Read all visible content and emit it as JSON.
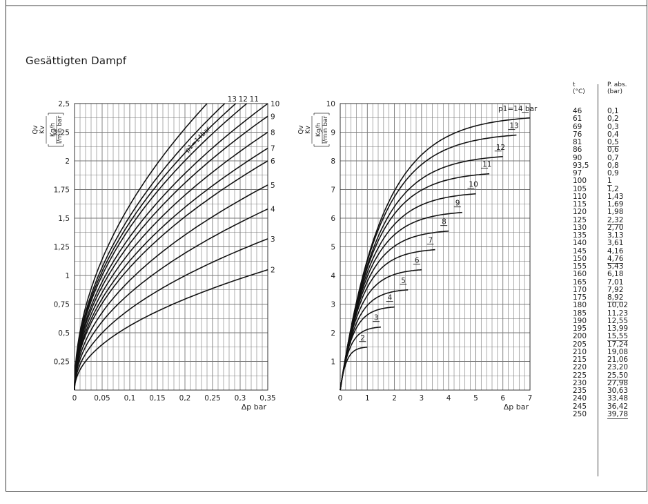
{
  "title": "Gesättigten Dampf",
  "chart_data": [
    {
      "type": "line",
      "chart_id": "left",
      "ylabel_quantity": "Qv",
      "ylabel_quantity2": "Kv",
      "ylabel_unit_top": "Kg/h",
      "ylabel_unit_bottom": "l/min bar",
      "xlabel": "Δp bar",
      "xlim": [
        0,
        0.35
      ],
      "ylim": [
        0,
        2.5
      ],
      "x_ticks": [
        "0",
        "0,05",
        "0,1",
        "0,15",
        "0,2",
        "0,25",
        "0,3",
        "0,35"
      ],
      "x_tick_values": [
        0,
        0.05,
        0.1,
        0.15,
        0.2,
        0.25,
        0.3,
        0.35
      ],
      "y_ticks": [
        "0,25",
        "0,5",
        "0,75",
        "1",
        "1,25",
        "1,5",
        "1,75",
        "2",
        "2,25",
        "2,5"
      ],
      "y_tick_values": [
        0.25,
        0.5,
        0.75,
        1,
        1.25,
        1.5,
        1.75,
        2,
        2.25,
        2.5
      ],
      "grid": true,
      "curve_annotation": "p1=14bar",
      "series": [
        {
          "label": "2",
          "y_at_xmax": 1.05
        },
        {
          "label": "3",
          "y_at_xmax": 1.32
        },
        {
          "label": "4",
          "y_at_xmax": 1.58
        },
        {
          "label": "5",
          "y_at_xmax": 1.79
        },
        {
          "label": "6",
          "y_at_xmax": 2.0
        },
        {
          "label": "7",
          "y_at_xmax": 2.11
        },
        {
          "label": "8",
          "y_at_xmax": 2.25
        },
        {
          "label": "9",
          "y_at_xmax": 2.39
        },
        {
          "label": "10",
          "y_at_xmax": 2.5
        },
        {
          "label": "11",
          "x_at_ymax": 0.312
        },
        {
          "label": "12",
          "x_at_ymax": 0.292
        },
        {
          "label": "13",
          "x_at_ymax": 0.272
        },
        {
          "label": "",
          "x_at_ymax": 0.24
        }
      ]
    },
    {
      "type": "line",
      "chart_id": "right",
      "ylabel_quantity": "Qv",
      "ylabel_quantity2": "Kv",
      "ylabel_unit_top": "Kg/h",
      "ylabel_unit_bottom": "l/min bar",
      "xlabel": "Δp bar",
      "xlim": [
        0,
        7
      ],
      "ylim": [
        0,
        10
      ],
      "x_ticks": [
        "0",
        "1",
        "2",
        "3",
        "4",
        "5",
        "6",
        "7"
      ],
      "x_tick_values": [
        0,
        1,
        2,
        3,
        4,
        5,
        6,
        7
      ],
      "y_ticks": [
        "1",
        "2",
        "3",
        "4",
        "5",
        "6",
        "7",
        "8",
        "9",
        "10"
      ],
      "y_tick_values": [
        1,
        2,
        3,
        4,
        5,
        6,
        7,
        8,
        9,
        10
      ],
      "grid": true,
      "series": [
        {
          "label": "2",
          "x_end": 1.0,
          "y_end": 1.5
        },
        {
          "label": "3",
          "x_end": 1.5,
          "y_end": 2.2
        },
        {
          "label": "4",
          "x_end": 2.0,
          "y_end": 2.9
        },
        {
          "label": "5",
          "x_end": 2.5,
          "y_end": 3.5
        },
        {
          "label": "6",
          "x_end": 3.0,
          "y_end": 4.2
        },
        {
          "label": "7",
          "x_end": 3.5,
          "y_end": 4.9
        },
        {
          "label": "8",
          "x_end": 4.0,
          "y_end": 5.55
        },
        {
          "label": "9",
          "x_end": 4.5,
          "y_end": 6.2
        },
        {
          "label": "10",
          "x_end": 5.0,
          "y_end": 6.85
        },
        {
          "label": "11",
          "x_end": 5.5,
          "y_end": 7.55
        },
        {
          "label": "12",
          "x_end": 6.0,
          "y_end": 8.15
        },
        {
          "label": "13",
          "x_end": 6.5,
          "y_end": 8.9
        },
        {
          "label": "p1=14 bar",
          "x_end": 7.0,
          "y_end": 9.5
        }
      ]
    }
  ],
  "table": {
    "header_t": "t",
    "header_t_unit": "(°C)",
    "header_p": "P. abs.",
    "header_p_unit": "(bar)",
    "rows": [
      [
        "46",
        "0,1"
      ],
      [
        "61",
        "0,2"
      ],
      [
        "69",
        "0,3"
      ],
      [
        "76",
        "0,4"
      ],
      [
        "81",
        "0,5"
      ],
      [
        "86",
        "0,6"
      ],
      [
        "90",
        "0,7"
      ],
      [
        "93,5",
        "0,8"
      ],
      [
        "97",
        "0,9"
      ],
      [
        "100",
        "1"
      ],
      [
        "105",
        "1,2"
      ],
      [
        "110",
        "1,43"
      ],
      [
        "115",
        "1,69"
      ],
      [
        "120",
        "1,98"
      ],
      [
        "125",
        "2,32"
      ],
      [
        "130",
        "2,70"
      ],
      [
        "135",
        "3,13"
      ],
      [
        "140",
        "3,61"
      ],
      [
        "145",
        "4,16"
      ],
      [
        "150",
        "4,76"
      ],
      [
        "155",
        "5,43"
      ],
      [
        "160",
        "6,18"
      ],
      [
        "165",
        "7,01"
      ],
      [
        "170",
        "7,92"
      ],
      [
        "175",
        "8,92"
      ],
      [
        "180",
        "10,02"
      ],
      [
        "185",
        "11,23"
      ],
      [
        "190",
        "12,55"
      ],
      [
        "195",
        "13,99"
      ],
      [
        "200",
        "15,55"
      ],
      [
        "205",
        "17,24"
      ],
      [
        "210",
        "19,08"
      ],
      [
        "215",
        "21,06"
      ],
      [
        "220",
        "23,20"
      ],
      [
        "225",
        "25,50"
      ],
      [
        "230",
        "27,98"
      ],
      [
        "235",
        "30,63"
      ],
      [
        "240",
        "33,48"
      ],
      [
        "245",
        "36,42"
      ],
      [
        "250",
        "39,78"
      ]
    ]
  }
}
